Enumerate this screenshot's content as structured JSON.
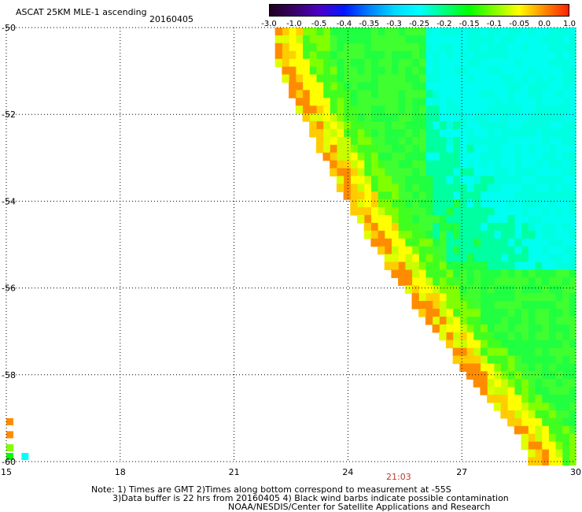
{
  "header": {
    "title": "ASCAT 25KM MLE-1 ascending",
    "date": "20160405"
  },
  "colorbar": {
    "labels": [
      "-3.0",
      "-1.0",
      "-0.5",
      "-0.4",
      "-0.35",
      "-0.3",
      "-0.25",
      "-0.2",
      "-0.15",
      "-0.1",
      "-0.05",
      "0.0",
      "1.0"
    ],
    "colors": [
      "#200020",
      "#3a0068",
      "#4b00c8",
      "#0018ff",
      "#0080ff",
      "#00d8ff",
      "#00ffff",
      "#00ff80",
      "#00ff00",
      "#80ff00",
      "#ffff00",
      "#ff8c00",
      "#ff2000"
    ]
  },
  "chart_data": {
    "type": "heatmap",
    "xlabel": "",
    "ylabel": "",
    "xlim": [
      15,
      30
    ],
    "ylim": [
      -60,
      -50
    ],
    "x_ticks": [
      "15",
      "18",
      "21",
      "24",
      "27",
      "30"
    ],
    "y_ticks": [
      "-50",
      "-52",
      "-54",
      "-56",
      "-58",
      "-60"
    ],
    "grid": "dotted",
    "swath_edge": [
      [
        22.0,
        -50.6
      ],
      [
        24.0,
        -54.0
      ],
      [
        25.5,
        -56.0
      ],
      [
        27.2,
        -58.0
      ],
      [
        28.8,
        -59.7
      ]
    ],
    "time_annotation": "21:03"
  },
  "notes": {
    "line1": "Note: 1) Times are GMT 2)Times along bottom correspond to measurement at -55S",
    "line2": "3)Data buffer is 22 hrs from 20160405 4) Black wind barbs indicate possible contamination",
    "credit": "NOAA/NESDIS/Center for Satellite Applications and Research"
  }
}
